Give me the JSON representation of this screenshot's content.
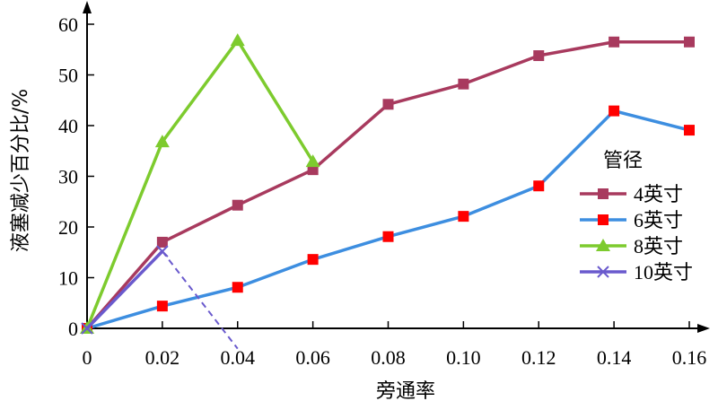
{
  "chart_data": {
    "type": "line",
    "title": "",
    "xlabel": "旁通率",
    "ylabel": "液塞减少百分比/%",
    "x": [
      0,
      0.02,
      0.04,
      0.06,
      0.08,
      0.1,
      0.12,
      0.14,
      0.16
    ],
    "x_tick_labels": [
      "0",
      "0.02",
      "0.04",
      "0.06",
      "0.08",
      "0.10",
      "0.12",
      "0.14",
      "0.16"
    ],
    "y_ticks": [
      0,
      10,
      20,
      30,
      40,
      50,
      60
    ],
    "y_tick_labels": [
      "0",
      "10",
      "20",
      "30",
      "40",
      "50",
      "60"
    ],
    "xlim": [
      0,
      0.16
    ],
    "ylim": [
      0,
      60
    ],
    "grid": false,
    "legend": {
      "title": "管径",
      "position": "right"
    },
    "series": [
      {
        "name": "4英寸",
        "color": "#A83A5E",
        "marker": "square",
        "points": [
          [
            0,
            0
          ],
          [
            0.02,
            17
          ],
          [
            0.04,
            24.3
          ],
          [
            0.06,
            31.3
          ],
          [
            0.08,
            44.2
          ],
          [
            0.1,
            48.2
          ],
          [
            0.12,
            53.8
          ],
          [
            0.14,
            56.5
          ],
          [
            0.16,
            56.5
          ]
        ]
      },
      {
        "name": "6英寸",
        "color": "#3D8EE0",
        "marker": "square",
        "marker_color": "#FF0000",
        "points": [
          [
            0,
            0
          ],
          [
            0.02,
            4.4
          ],
          [
            0.04,
            8.1
          ],
          [
            0.06,
            13.6
          ],
          [
            0.08,
            18.1
          ],
          [
            0.1,
            22.1
          ],
          [
            0.12,
            28.1
          ],
          [
            0.14,
            42.9
          ],
          [
            0.16,
            39.1
          ]
        ]
      },
      {
        "name": "8英寸",
        "color": "#7DCB2E",
        "marker": "triangle",
        "points": [
          [
            0,
            0
          ],
          [
            0.02,
            36.8
          ],
          [
            0.04,
            56.8
          ],
          [
            0.06,
            32.9
          ]
        ]
      },
      {
        "name": "10英寸",
        "color": "#6A5ACD",
        "marker": "x",
        "points": [
          [
            0,
            0
          ],
          [
            0.02,
            15.2
          ]
        ],
        "extension": {
          "dashed": true,
          "points": [
            [
              0.02,
              15.2
            ],
            [
              0.04,
              -4
            ]
          ]
        }
      }
    ]
  }
}
